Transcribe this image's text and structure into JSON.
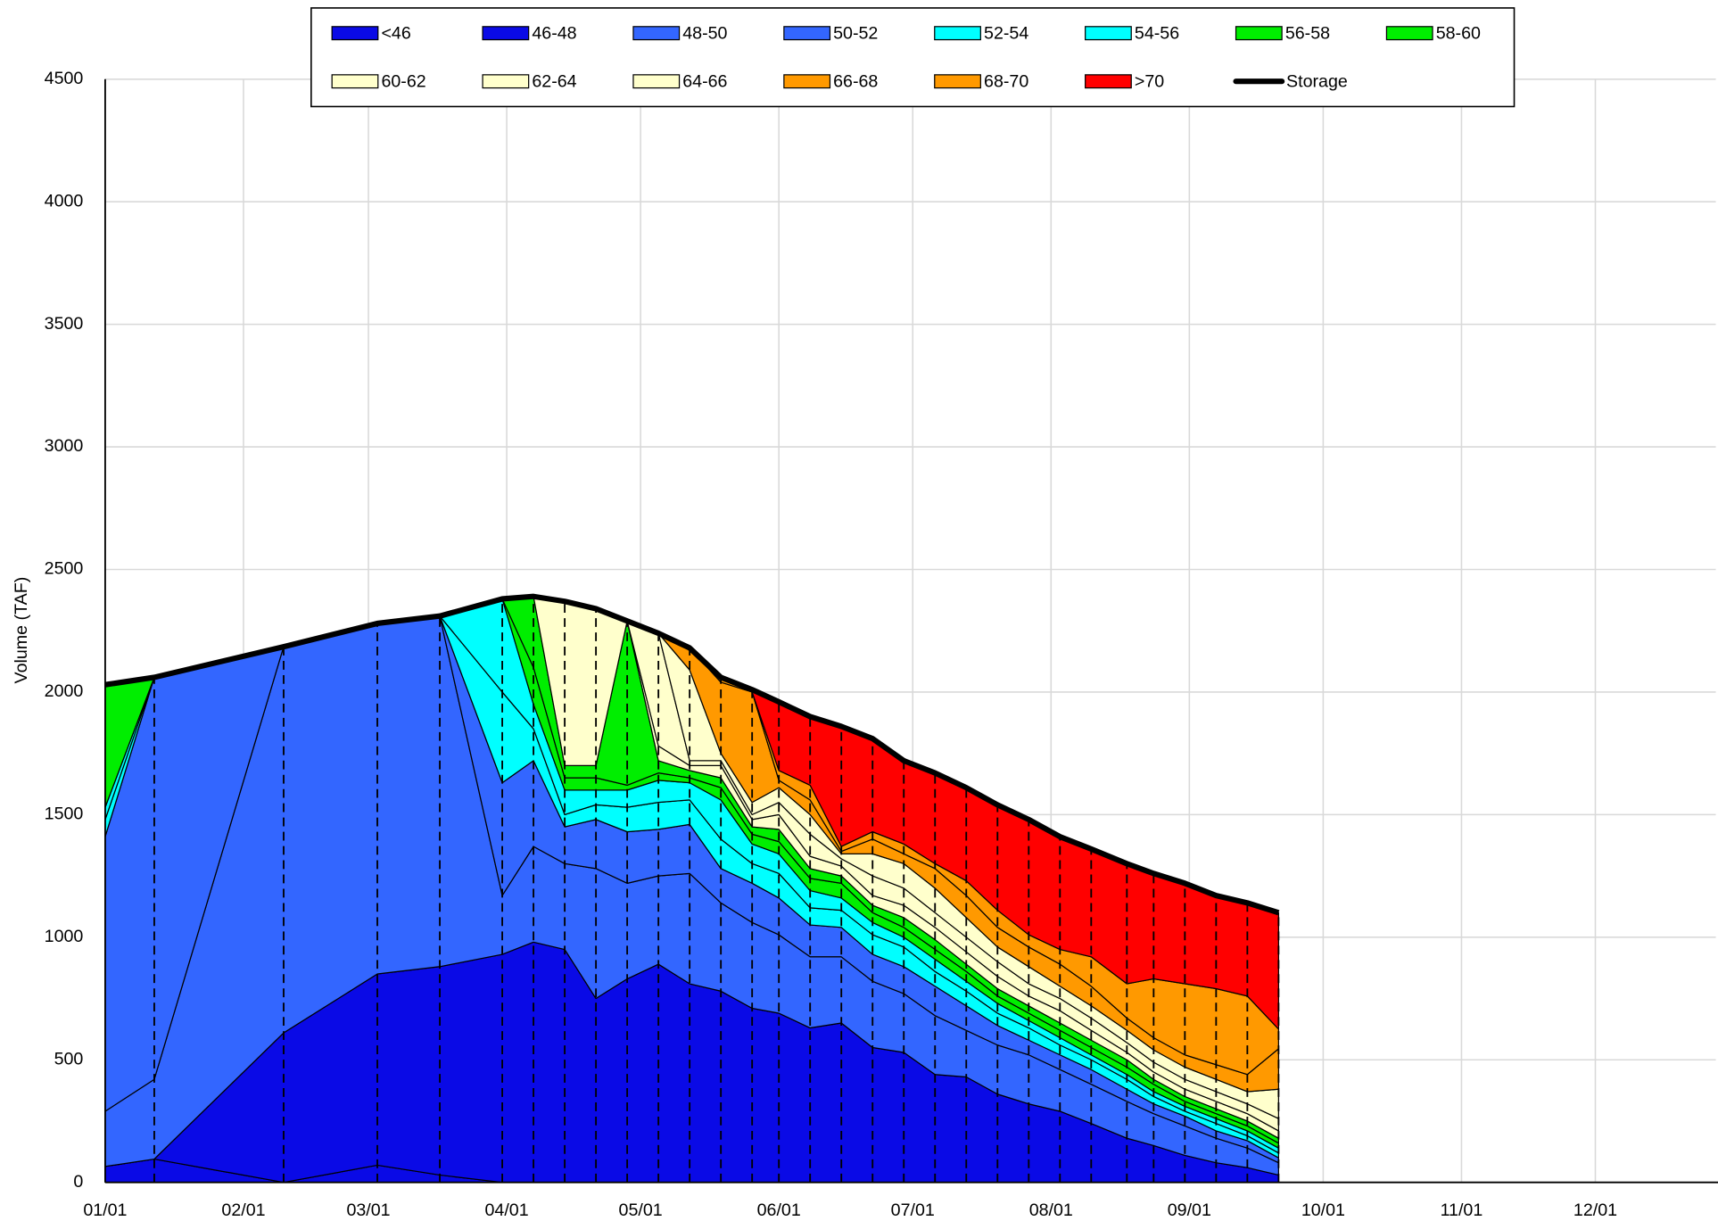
{
  "chart_data": {
    "type": "stacked-area",
    "y_label": "Volume (TAF)",
    "x": [
      0,
      11,
      40,
      61,
      75,
      89,
      96,
      103,
      110,
      117,
      124,
      131,
      138,
      145,
      151,
      158,
      165,
      172,
      179,
      186,
      193,
      200,
      207,
      214,
      221,
      229,
      235,
      242,
      249,
      256,
      263
    ],
    "xlim": [
      0,
      361
    ],
    "xticks": [
      {
        "value": 0,
        "label": "01/01"
      },
      {
        "value": 31,
        "label": "02/01"
      },
      {
        "value": 59,
        "label": "03/01"
      },
      {
        "value": 90,
        "label": "04/01"
      },
      {
        "value": 120,
        "label": "05/01"
      },
      {
        "value": 151,
        "label": "06/01"
      },
      {
        "value": 181,
        "label": "07/01"
      },
      {
        "value": 212,
        "label": "08/01"
      },
      {
        "value": 243,
        "label": "09/01"
      },
      {
        "value": 273,
        "label": "10/01"
      },
      {
        "value": 304,
        "label": "11/01"
      },
      {
        "value": 334,
        "label": "12/01"
      }
    ],
    "ylim": [
      0,
      4500
    ],
    "yticks": [
      0,
      500,
      1000,
      1500,
      2000,
      2500,
      3000,
      3500,
      4000,
      4500
    ],
    "grid": true,
    "legend": "top",
    "series": [
      {
        "name": "<46",
        "type": "area",
        "color": "#0a0ae6",
        "values": [
          65,
          95,
          0,
          70,
          30,
          0,
          0,
          0,
          0,
          0,
          0,
          0,
          0,
          0,
          0,
          0,
          0,
          0,
          0,
          0,
          0,
          0,
          0,
          0,
          0,
          0,
          0,
          0,
          0,
          0,
          0
        ]
      },
      {
        "name": "46-48",
        "type": "area",
        "color": "#0a0ae6",
        "values": [
          0,
          0,
          610,
          780,
          850,
          930,
          980,
          950,
          750,
          830,
          890,
          810,
          780,
          710,
          690,
          630,
          650,
          550,
          530,
          440,
          430,
          360,
          320,
          290,
          240,
          180,
          150,
          110,
          80,
          60,
          30
        ]
      },
      {
        "name": "48-50",
        "type": "area",
        "color": "#3366ff",
        "values": [
          225,
          325,
          1575,
          1430,
          1430,
          240,
          390,
          350,
          530,
          390,
          360,
          450,
          360,
          350,
          320,
          290,
          270,
          270,
          240,
          240,
          190,
          200,
          200,
          170,
          160,
          150,
          130,
          120,
          100,
          80,
          50
        ]
      },
      {
        "name": "50-52",
        "type": "area",
        "color": "#3366ff",
        "values": [
          1120,
          1640,
          0,
          0,
          0,
          460,
          350,
          150,
          200,
          210,
          190,
          200,
          140,
          160,
          150,
          130,
          120,
          110,
          110,
          120,
          100,
          80,
          60,
          60,
          60,
          50,
          40,
          40,
          30,
          30,
          20
        ]
      },
      {
        "name": "52-54",
        "type": "area",
        "color": "#00ffff",
        "values": [
          70,
          0,
          0,
          0,
          0,
          370,
          130,
          50,
          60,
          100,
          110,
          100,
          120,
          80,
          100,
          70,
          70,
          80,
          80,
          60,
          60,
          50,
          50,
          40,
          40,
          40,
          30,
          20,
          30,
          20,
          20
        ]
      },
      {
        "name": "54-56",
        "type": "area",
        "color": "#00ffff",
        "values": [
          50,
          0,
          0,
          0,
          0,
          380,
          100,
          100,
          60,
          70,
          90,
          70,
          160,
          80,
          80,
          70,
          50,
          50,
          40,
          50,
          40,
          40,
          30,
          30,
          20,
          20,
          20,
          20,
          20,
          20,
          20
        ]
      },
      {
        "name": "56-58",
        "type": "area",
        "color": "#00ee00",
        "values": [
          0,
          0,
          0,
          0,
          0,
          0,
          150,
          50,
          50,
          20,
          30,
          20,
          50,
          40,
          50,
          50,
          60,
          40,
          40,
          40,
          40,
          30,
          30,
          30,
          30,
          30,
          30,
          20,
          20,
          20,
          20
        ]
      },
      {
        "name": "58-60",
        "type": "area",
        "color": "#00ee00",
        "values": [
          500,
          0,
          0,
          0,
          0,
          0,
          290,
          50,
          50,
          670,
          50,
          30,
          40,
          30,
          50,
          40,
          30,
          30,
          40,
          40,
          30,
          30,
          30,
          30,
          30,
          30,
          20,
          20,
          20,
          20,
          20
        ]
      },
      {
        "name": "60-62",
        "type": "area",
        "color": "#ffffcc",
        "values": [
          0,
          0,
          0,
          0,
          0,
          0,
          0,
          670,
          640,
          0,
          60,
          20,
          50,
          30,
          60,
          50,
          40,
          40,
          50,
          50,
          50,
          50,
          40,
          50,
          40,
          30,
          30,
          30,
          30,
          30,
          30
        ]
      },
      {
        "name": "62-64",
        "type": "area",
        "color": "#ffffcc",
        "values": [
          0,
          0,
          0,
          0,
          0,
          0,
          0,
          0,
          0,
          0,
          460,
          20,
          20,
          20,
          50,
          90,
          30,
          80,
          70,
          60,
          60,
          60,
          50,
          50,
          50,
          40,
          40,
          40,
          40,
          40,
          50
        ]
      },
      {
        "name": "64-66",
        "type": "area",
        "color": "#ffffcc",
        "values": [
          0,
          0,
          0,
          0,
          0,
          0,
          0,
          0,
          0,
          0,
          0,
          370,
          30,
          50,
          60,
          80,
          20,
          90,
          100,
          100,
          80,
          60,
          70,
          50,
          50,
          50,
          50,
          50,
          50,
          50,
          120
        ]
      },
      {
        "name": "66-68",
        "type": "area",
        "color": "#ff9900",
        "values": [
          0,
          0,
          0,
          0,
          0,
          0,
          0,
          0,
          0,
          0,
          0,
          90,
          290,
          450,
          30,
          60,
          10,
          60,
          40,
          80,
          90,
          80,
          80,
          90,
          80,
          50,
          50,
          50,
          60,
          70,
          165
        ]
      },
      {
        "name": "68-70",
        "type": "area",
        "color": "#ff9900",
        "values": [
          0,
          0,
          0,
          0,
          0,
          0,
          0,
          0,
          0,
          0,
          0,
          0,
          20,
          0,
          40,
          60,
          20,
          30,
          40,
          20,
          60,
          70,
          50,
          60,
          120,
          140,
          240,
          290,
          310,
          320,
          80
        ]
      },
      {
        "name": ">70",
        "type": "area",
        "color": "#ff0000",
        "values": [
          0,
          0,
          0,
          0,
          0,
          0,
          0,
          0,
          0,
          0,
          0,
          0,
          0,
          10,
          280,
          280,
          490,
          380,
          340,
          370,
          380,
          430,
          470,
          460,
          440,
          490,
          430,
          410,
          380,
          380,
          475
        ]
      },
      {
        "name": "Storage",
        "type": "line",
        "color": "#000000",
        "values": [
          2030,
          2060,
          2185,
          2280,
          2310,
          2380,
          2390,
          2370,
          2340,
          2290,
          2240,
          2180,
          2060,
          2010,
          1960,
          1900,
          1860,
          1810,
          1720,
          1670,
          1610,
          1540,
          1480,
          1410,
          1360,
          1300,
          1260,
          1220,
          1170,
          1140,
          1100
        ]
      }
    ]
  }
}
